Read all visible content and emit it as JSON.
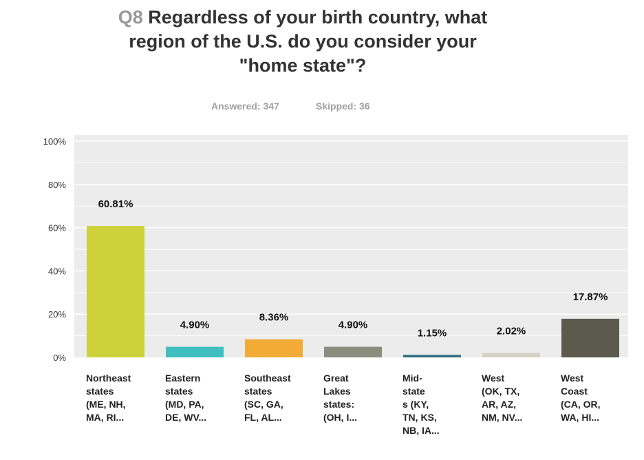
{
  "title": {
    "qnum": "Q8",
    "lines": [
      "Regardless of your birth country, what",
      "region of the U.S. do you consider your",
      "\"home state\"?"
    ]
  },
  "stats": {
    "answered": "Answered: 347",
    "skipped": "Skipped: 36"
  },
  "colors": {
    "plot_bg": "#ececec",
    "gridline": "#ffffff"
  },
  "chart_data": {
    "type": "bar",
    "ylim": [
      0,
      100
    ],
    "yticks": [
      "0%",
      "20%",
      "40%",
      "60%",
      "80%",
      "100%"
    ],
    "grid": true,
    "categories": [
      [
        "Northeast",
        "states",
        "(ME, NH,",
        "MA, RI..."
      ],
      [
        "Eastern",
        "states",
        "(MD, PA,",
        "DE, WV..."
      ],
      [
        "Southeast",
        "states",
        "(SC, GA,",
        "FL, AL..."
      ],
      [
        "Great",
        "Lakes",
        "states:",
        "(OH, I..."
      ],
      [
        "Mid-",
        "state",
        "s (KY,",
        "TN, KS,",
        "NB, IA..."
      ],
      [
        "West",
        "(OK, TX,",
        "AR, AZ,",
        "NM, NV..."
      ],
      [
        "West",
        "Coast",
        "(CA, OR,",
        "WA, HI..."
      ]
    ],
    "values": [
      60.81,
      4.9,
      8.36,
      4.9,
      1.15,
      2.02,
      17.87
    ],
    "labels": [
      "60.81%",
      "4.90%",
      "8.36%",
      "4.90%",
      "1.15%",
      "2.02%",
      "17.87%"
    ],
    "colors": [
      "#cdd13c",
      "#3fbfbf",
      "#f2ab35",
      "#8b8e7c",
      "#2f6e7e",
      "#d3d0c4",
      "#5b5a4d"
    ]
  }
}
